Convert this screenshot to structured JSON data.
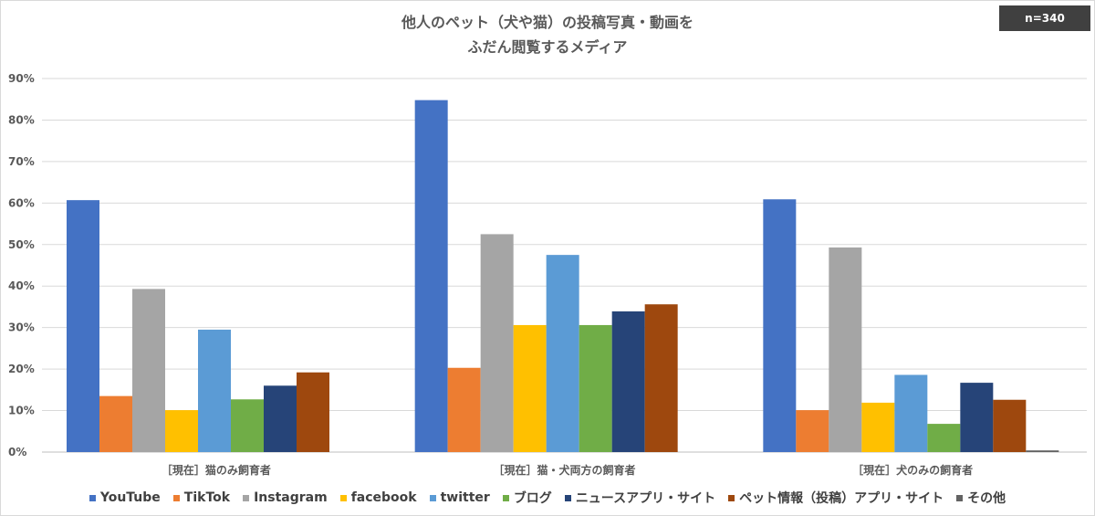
{
  "badge": "n=340",
  "chart_data": {
    "type": "bar",
    "title_lines": [
      "他人のペット（犬や猫）の投稿写真・動画を",
      "ふだん閲覧するメディア"
    ],
    "categories": [
      "［現在］猫のみ飼育者",
      "［現在］猫・犬両方の飼育者",
      "［現在］犬のみの飼育者"
    ],
    "y_ticks": [
      "0%",
      "10%",
      "20%",
      "30%",
      "40%",
      "50%",
      "60%",
      "70%",
      "80%",
      "90%"
    ],
    "ylim": [
      0,
      90
    ],
    "grid": true,
    "legend_position": "bottom",
    "series": [
      {
        "name": "YouTube",
        "color": "#4472c4",
        "values": [
          60.7,
          84.8,
          60.9
        ]
      },
      {
        "name": "TikTok",
        "color": "#ed7d31",
        "values": [
          13.5,
          20.3,
          10.1
        ]
      },
      {
        "name": "Instagram",
        "color": "#a5a5a5",
        "values": [
          39.3,
          52.5,
          49.3
        ]
      },
      {
        "name": "facebook",
        "color": "#ffc000",
        "values": [
          10.1,
          30.6,
          11.9
        ]
      },
      {
        "name": "twitter",
        "color": "#5b9bd5",
        "values": [
          29.5,
          47.5,
          18.6
        ]
      },
      {
        "name": "ブログ",
        "color": "#70ad47",
        "values": [
          12.7,
          30.6,
          6.8
        ]
      },
      {
        "name": "ニュースアプリ・サイト",
        "color": "#264478",
        "values": [
          16.0,
          33.9,
          16.7
        ]
      },
      {
        "name": "ペット情報（投稿）アプリ・サイト",
        "color": "#9e480e",
        "values": [
          19.2,
          35.6,
          12.6
        ]
      },
      {
        "name": "その他",
        "color": "#636363",
        "values": [
          0,
          0,
          0.4
        ]
      }
    ]
  }
}
